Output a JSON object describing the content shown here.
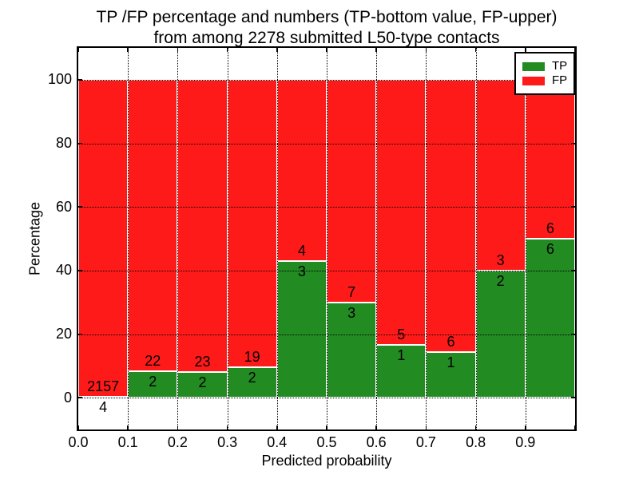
{
  "chart_data": {
    "type": "bar",
    "stacked": true,
    "normalized_to_percent": true,
    "title_line1": "TP /FP percentage and numbers (TP-bottom value, FP-upper)",
    "title_line2": "from among 2278 submitted L50-type contacts",
    "xlabel": "Predicted probability",
    "ylabel": "Percentage",
    "xlim": [
      0.0,
      1.0
    ],
    "ylim": [
      -10,
      110
    ],
    "grid": true,
    "grid_style": "dotted",
    "x_tick_labels": [
      "0.0",
      "0.1",
      "0.2",
      "0.3",
      "0.4",
      "0.5",
      "0.6",
      "0.7",
      "0.8",
      "0.9"
    ],
    "y_tick_values": [
      "0",
      "20",
      "40",
      "60",
      "80",
      "100"
    ],
    "bin_edges": [
      0.0,
      0.1,
      0.2,
      0.3,
      0.4,
      0.5,
      0.6,
      0.7,
      0.8,
      0.9,
      1.0
    ],
    "total_contacts": 2278,
    "series": [
      {
        "name": "TP",
        "color": "#228B22",
        "position": "bottom",
        "counts": [
          4,
          2,
          2,
          2,
          3,
          3,
          1,
          1,
          2,
          6
        ]
      },
      {
        "name": "FP",
        "color": "#FF1A1A",
        "position": "top",
        "counts": [
          2157,
          22,
          23,
          19,
          4,
          7,
          5,
          6,
          3,
          6
        ]
      }
    ],
    "tp_percent_per_bin": [
      0.19,
      8.33,
      8.0,
      9.52,
      42.86,
      30.0,
      16.67,
      14.29,
      40.0,
      50.0
    ],
    "legend": {
      "position": "upper right",
      "entries": [
        {
          "label": "TP",
          "color": "#228B22"
        },
        {
          "label": "FP",
          "color": "#FF1A1A"
        }
      ]
    }
  }
}
